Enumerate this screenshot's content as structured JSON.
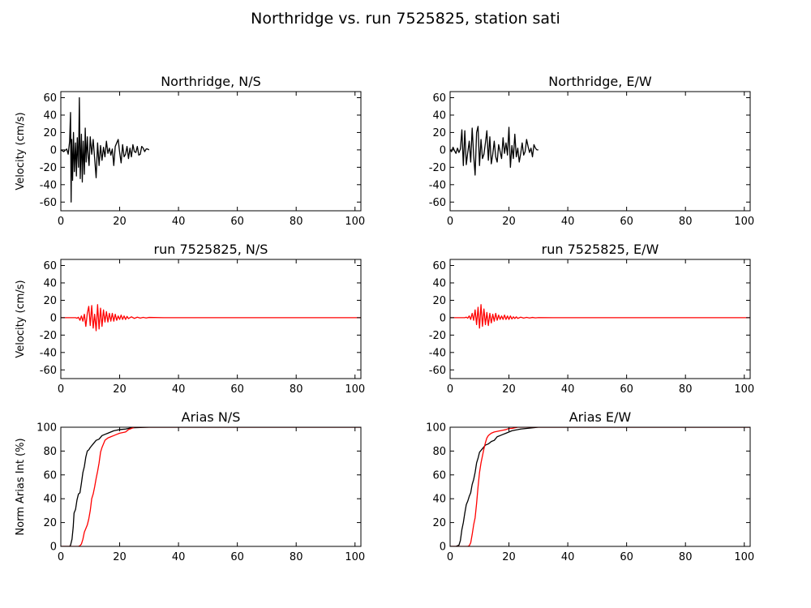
{
  "figure_title": "Northridge vs. run 7525825, station sati",
  "colors": {
    "recorded": "#000000",
    "simulated": "#ff0000",
    "axes": "#000000"
  },
  "chart_data": [
    {
      "type": "line",
      "title": "Northridge, N/S",
      "xlabel": "",
      "ylabel": "Velocity (cm/s)",
      "xlim": [
        0,
        102
      ],
      "ylim": [
        -70,
        67
      ],
      "xticks": [
        0,
        20,
        40,
        60,
        80,
        100
      ],
      "yticks": [
        -60,
        -40,
        -20,
        0,
        20,
        40,
        60
      ],
      "grid": false,
      "series": [
        {
          "color": "#000000",
          "x": [
            0,
            1,
            2,
            2.5,
            3,
            3.3,
            3.5,
            3.7,
            4,
            4.3,
            4.6,
            5,
            5.3,
            5.6,
            6,
            6.3,
            6.6,
            7,
            7.3,
            7.6,
            8,
            8.3,
            8.6,
            9,
            9.3,
            9.6,
            10,
            10.5,
            11,
            11.5,
            12,
            12.5,
            13,
            13.5,
            14,
            14.5,
            15,
            15.5,
            16,
            16.5,
            17,
            17.5,
            18,
            18.5,
            19,
            19.5,
            20,
            20.5,
            21,
            21.5,
            22,
            22.5,
            23,
            23.5,
            24,
            24.5,
            25,
            25.5,
            26,
            26.5,
            27,
            27.5,
            28,
            28.5,
            29,
            29.5,
            30
          ],
          "y": [
            0,
            -2,
            1,
            -5,
            10,
            43,
            -60,
            12,
            -35,
            20,
            -25,
            8,
            -30,
            14,
            -20,
            60,
            -33,
            18,
            -37,
            10,
            -28,
            25,
            -14,
            15,
            -8,
            -18,
            15,
            -5,
            12,
            -10,
            -32,
            8,
            -18,
            5,
            -12,
            3,
            -8,
            10,
            -4,
            2,
            -6,
            1,
            -18,
            4,
            8,
            12,
            -3,
            -15,
            6,
            -8,
            -5,
            4,
            -10,
            2,
            -8,
            6,
            -2,
            -3,
            4,
            -6,
            -5,
            4,
            2,
            -2,
            1,
            1,
            0
          ]
        }
      ]
    },
    {
      "type": "line",
      "title": "Northridge, E/W",
      "xlabel": "",
      "ylabel": "",
      "xlim": [
        0,
        102
      ],
      "ylim": [
        -70,
        67
      ],
      "xticks": [
        0,
        20,
        40,
        60,
        80,
        100
      ],
      "yticks": [
        -60,
        -40,
        -20,
        0,
        20,
        40,
        60
      ],
      "grid": false,
      "series": [
        {
          "color": "#000000",
          "x": [
            0,
            0.5,
            1,
            1.5,
            2,
            2.5,
            3,
            3.5,
            4,
            4.5,
            5,
            5.5,
            6,
            6.5,
            7,
            7.5,
            8,
            8.5,
            9,
            9.5,
            10,
            10.5,
            11,
            11.5,
            12,
            12.5,
            13,
            13.5,
            14,
            14.5,
            15,
            15.5,
            16,
            16.5,
            17,
            17.5,
            18,
            18.5,
            19,
            19.5,
            20,
            20.5,
            21,
            21.5,
            22,
            22.5,
            23,
            23.5,
            24,
            24.5,
            25,
            25.5,
            26,
            26.5,
            27,
            27.5,
            28,
            28.5,
            29,
            29.5,
            30
          ],
          "y": [
            0,
            -2,
            3,
            -1,
            -4,
            2,
            -3,
            1,
            23,
            -18,
            22,
            -17,
            -3,
            10,
            -14,
            25,
            -6,
            -29,
            20,
            27,
            -18,
            12,
            -10,
            -5,
            8,
            22,
            -12,
            15,
            -16,
            -5,
            10,
            -8,
            -14,
            6,
            -2,
            -10,
            14,
            -4,
            8,
            -6,
            26,
            -20,
            5,
            -10,
            18,
            -8,
            2,
            -14,
            -4,
            8,
            -6,
            -2,
            12,
            4,
            -3,
            2,
            -8,
            6,
            2,
            0,
            0
          ]
        }
      ]
    },
    {
      "type": "line",
      "title": "run 7525825, N/S",
      "xlabel": "",
      "ylabel": "Velocity (cm/s)",
      "xlim": [
        0,
        102
      ],
      "ylim": [
        -70,
        67
      ],
      "xticks": [
        0,
        20,
        40,
        60,
        80,
        100
      ],
      "yticks": [
        -60,
        -40,
        -20,
        0,
        20,
        40,
        60
      ],
      "grid": false,
      "series": [
        {
          "color": "#ff0000",
          "x": [
            0,
            2,
            3,
            4,
            5,
            5.5,
            6,
            6.5,
            7,
            7.5,
            8,
            8.5,
            9,
            9.5,
            10,
            10.5,
            11,
            11.5,
            12,
            12.5,
            13,
            13.5,
            14,
            14.5,
            15,
            15.5,
            16,
            16.5,
            17,
            17.5,
            18,
            18.5,
            19,
            19.5,
            20,
            20.5,
            21,
            21.5,
            22,
            22.5,
            23,
            24,
            25,
            26,
            27,
            28,
            29,
            30,
            35,
            40,
            50,
            60,
            70,
            80,
            90,
            100,
            102
          ],
          "y": [
            0,
            0,
            0,
            0,
            0,
            -0.6,
            0.5,
            -3,
            2,
            -4,
            4,
            -10,
            5,
            13,
            -9,
            14,
            -12,
            4,
            -15,
            15,
            -13,
            11,
            -10,
            9,
            -5,
            7,
            -5,
            5,
            -4,
            5,
            -4,
            4,
            -3,
            2,
            -2,
            3,
            -2,
            2,
            -2,
            1.5,
            -1,
            1,
            -0.8,
            0.6,
            -0.5,
            0.4,
            -0.3,
            0.3,
            0,
            0,
            0,
            0,
            0,
            0,
            0,
            0,
            0
          ]
        }
      ]
    },
    {
      "type": "line",
      "title": "run 7525825, E/W",
      "xlabel": "",
      "ylabel": "",
      "xlim": [
        0,
        102
      ],
      "ylim": [
        -70,
        67
      ],
      "xticks": [
        0,
        20,
        40,
        60,
        80,
        100
      ],
      "yticks": [
        -60,
        -40,
        -20,
        0,
        20,
        40,
        60
      ],
      "grid": false,
      "series": [
        {
          "color": "#ff0000",
          "x": [
            0,
            2,
            3,
            4,
            5,
            5.5,
            6,
            6.5,
            7,
            7.5,
            8,
            8.5,
            9,
            9.5,
            10,
            10.5,
            11,
            11.5,
            12,
            12.5,
            13,
            13.5,
            14,
            14.5,
            15,
            15.5,
            16,
            16.5,
            17,
            17.5,
            18,
            18.5,
            19,
            19.5,
            20,
            20.5,
            21,
            21.5,
            22,
            22.5,
            23,
            24,
            25,
            26,
            27,
            28,
            29,
            30,
            35,
            40,
            50,
            60,
            70,
            80,
            90,
            100,
            102
          ],
          "y": [
            0,
            0,
            0,
            0,
            0,
            0.6,
            -0.6,
            2,
            -2,
            5,
            -3,
            9,
            -8,
            12,
            -12,
            15,
            -10,
            10,
            -8,
            6,
            -9,
            5,
            -6,
            4,
            -4,
            5,
            -3,
            3,
            -2,
            2,
            -2,
            3,
            -2,
            2,
            -2,
            2,
            -1.5,
            1,
            -1,
            1,
            -0.8,
            0.6,
            -0.5,
            0.4,
            -0.3,
            0.3,
            -0.2,
            0.1,
            0,
            0,
            0,
            0,
            0,
            0,
            0,
            0,
            0
          ]
        }
      ]
    },
    {
      "type": "line",
      "title": "Arias N/S",
      "xlabel": "",
      "ylabel": "Norm Arias Int (%)",
      "xlim": [
        0,
        102
      ],
      "ylim": [
        0,
        100
      ],
      "xticks": [
        0,
        20,
        40,
        60,
        80,
        100
      ],
      "yticks": [
        0,
        20,
        40,
        60,
        80,
        100
      ],
      "grid": false,
      "series": [
        {
          "color": "#000000",
          "x": [
            0,
            2,
            3,
            3.3,
            3.8,
            4.2,
            4.5,
            5,
            5.5,
            6,
            6.5,
            7,
            7.5,
            8,
            8.5,
            9,
            9.5,
            10,
            11,
            12,
            13,
            14,
            15,
            16,
            17,
            18,
            19,
            20,
            22,
            24,
            30,
            102
          ],
          "y": [
            0,
            0,
            0,
            1,
            6,
            16,
            28,
            31,
            39,
            44,
            45,
            53,
            62,
            67,
            75,
            80,
            81,
            83,
            86,
            89,
            90,
            93,
            94,
            95,
            96,
            97,
            97.5,
            98,
            98.5,
            99.5,
            100,
            100
          ]
        },
        {
          "color": "#ff0000",
          "x": [
            0,
            5,
            6,
            6.5,
            7,
            7.5,
            8,
            8.5,
            9,
            9.5,
            10,
            10.5,
            11,
            11.5,
            12,
            12.5,
            13,
            13.5,
            14,
            15,
            16,
            17,
            18,
            19,
            20,
            21,
            22,
            23,
            24,
            25,
            30,
            102
          ],
          "y": [
            0,
            0,
            0,
            0.5,
            2,
            6,
            12,
            15,
            18,
            23,
            30,
            40,
            44,
            50,
            57,
            63,
            70,
            79,
            83,
            89,
            91,
            92,
            93,
            94,
            95,
            95.5,
            96,
            98,
            99,
            100,
            100,
            100
          ]
        }
      ]
    },
    {
      "type": "line",
      "title": "Arias E/W",
      "xlabel": "",
      "ylabel": "",
      "xlim": [
        0,
        102
      ],
      "ylim": [
        0,
        100
      ],
      "xticks": [
        0,
        20,
        40,
        60,
        80,
        100
      ],
      "yticks": [
        0,
        20,
        40,
        60,
        80,
        100
      ],
      "grid": false,
      "series": [
        {
          "color": "#000000",
          "x": [
            0,
            2,
            3,
            3.5,
            4,
            4.5,
            5,
            5.5,
            6,
            6.5,
            7,
            7.5,
            8,
            8.5,
            9,
            9.5,
            10,
            11,
            12,
            13,
            14,
            15,
            16,
            17,
            18,
            19,
            20,
            21,
            22,
            24,
            26,
            28,
            30,
            102
          ],
          "y": [
            0,
            0,
            1,
            5,
            14,
            20,
            28,
            35,
            38,
            42,
            45,
            52,
            56,
            62,
            70,
            74,
            79,
            82,
            85,
            86,
            88,
            89,
            92,
            93,
            94,
            95,
            96,
            97,
            97.5,
            98.5,
            99,
            99.5,
            100,
            100
          ]
        },
        {
          "color": "#ff0000",
          "x": [
            0,
            5,
            6,
            6.5,
            7,
            7.5,
            8,
            8.5,
            9,
            9.5,
            10,
            10.5,
            11,
            11.5,
            12,
            12.5,
            13,
            14,
            15,
            16,
            17,
            18,
            19,
            20,
            21,
            22,
            23,
            24,
            30,
            102
          ],
          "y": [
            0,
            0,
            0,
            0.5,
            3,
            10,
            18,
            24,
            36,
            50,
            62,
            70,
            76,
            82,
            87,
            91,
            93,
            95,
            96,
            96.5,
            97,
            97.5,
            98,
            99,
            99,
            99.5,
            100,
            100,
            100,
            100
          ]
        }
      ]
    }
  ]
}
